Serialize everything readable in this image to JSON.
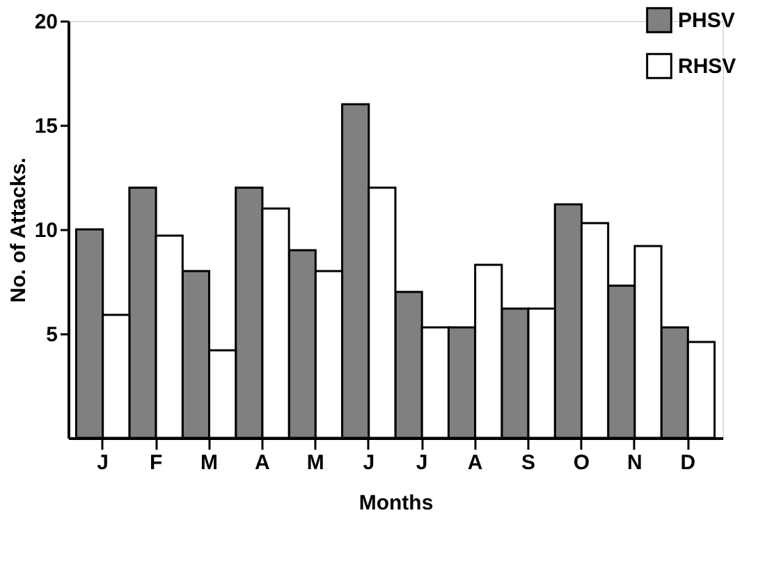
{
  "chart_data": {
    "type": "bar",
    "xlabel": "Months",
    "ylabel": "No. of Attacks.",
    "categories": [
      "J",
      "F",
      "M",
      "A",
      "M",
      "J",
      "J",
      "A",
      "S",
      "O",
      "N",
      "D"
    ],
    "series": [
      {
        "name": "PHSV",
        "color": "#808080",
        "values": [
          10,
          12,
          8,
          12,
          9,
          16,
          7,
          5.3,
          6.2,
          11.2,
          7.3,
          5.3
        ]
      },
      {
        "name": "RHSV",
        "color": "#ffffff",
        "values": [
          5.9,
          9.7,
          4.2,
          11,
          8,
          12,
          5.3,
          8.3,
          6.2,
          10.3,
          9.2,
          4.6
        ]
      }
    ],
    "ylim": [
      0,
      20
    ],
    "yticks": [
      5,
      10,
      15,
      20
    ],
    "grid": false,
    "legend": "top right"
  }
}
